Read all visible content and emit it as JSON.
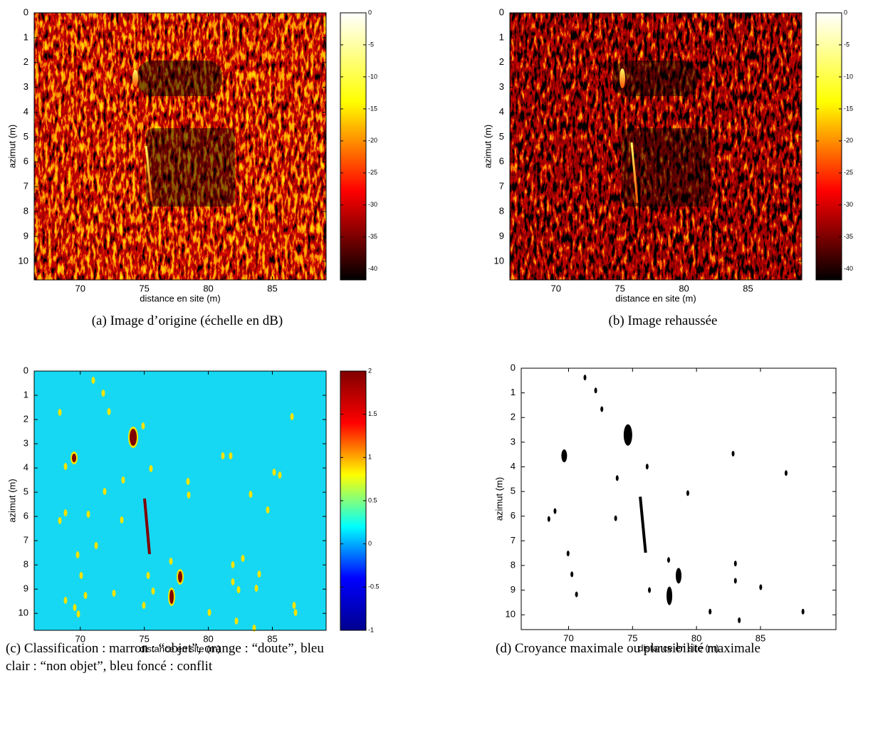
{
  "chart_data": [
    {
      "type": "image",
      "xlabel": "distance en site (m)",
      "ylabel": "azimut (m)",
      "xlim": [
        66.4,
        89.2
      ],
      "xticks": [
        70,
        75,
        80,
        85
      ],
      "ylim": [
        10.75,
        0
      ],
      "yticks": [
        0,
        1,
        2,
        3,
        4,
        5,
        6,
        7,
        8,
        9,
        10
      ],
      "colorbar": {
        "colormap": "hot",
        "lim": [
          -41.7,
          0
        ],
        "ticks": [
          0,
          -5,
          -10,
          -15,
          -20,
          -25,
          -30,
          -35,
          -40
        ]
      },
      "caption": "(a) Image d’origine (échelle en dB)"
    },
    {
      "type": "image",
      "xlabel": "distance en site (m)",
      "ylabel": "azimut (m)",
      "xlim": [
        66.4,
        89.2
      ],
      "xticks": [
        70,
        75,
        80,
        85
      ],
      "ylim": [
        10.75,
        0
      ],
      "yticks": [
        0,
        1,
        2,
        3,
        4,
        5,
        6,
        7,
        8,
        9,
        10
      ],
      "colorbar": {
        "colormap": "hot",
        "lim": [
          -41.7,
          0
        ],
        "ticks": [
          0,
          -5,
          -10,
          -15,
          -20,
          -25,
          -30,
          -35,
          -40
        ]
      },
      "caption": "(b) Image rehaussée"
    },
    {
      "type": "image",
      "xlabel": "distance en site (m)",
      "ylabel": "azimut (m)",
      "xlim": [
        66.4,
        89.2
      ],
      "xticks": [
        70,
        75,
        80,
        85
      ],
      "ylim": [
        10.7,
        0
      ],
      "yticks": [
        0,
        1,
        2,
        3,
        4,
        5,
        6,
        7,
        8,
        9,
        10
      ],
      "colorbar": {
        "colormap": "jet",
        "lim": [
          -1,
          2
        ],
        "ticks": [
          2,
          1.5,
          1,
          0.5,
          0,
          -0.5,
          -1
        ]
      },
      "caption": "(c) Classification : marron : “objet”, orange : “doute”, bleu clair : “non objet”, bleu foncé : conflit"
    },
    {
      "type": "image",
      "xlabel": "distance en site (m)",
      "ylabel": "azimut (m)",
      "xlim": [
        66.3,
        90.9
      ],
      "xticks": [
        70,
        75,
        80,
        85
      ],
      "ylim": [
        10.6,
        0
      ],
      "yticks": [
        0,
        1,
        2,
        3,
        4,
        5,
        6,
        7,
        8,
        9,
        10
      ],
      "caption": "(d) Croyance maximale ou plausibilité maximale"
    }
  ]
}
